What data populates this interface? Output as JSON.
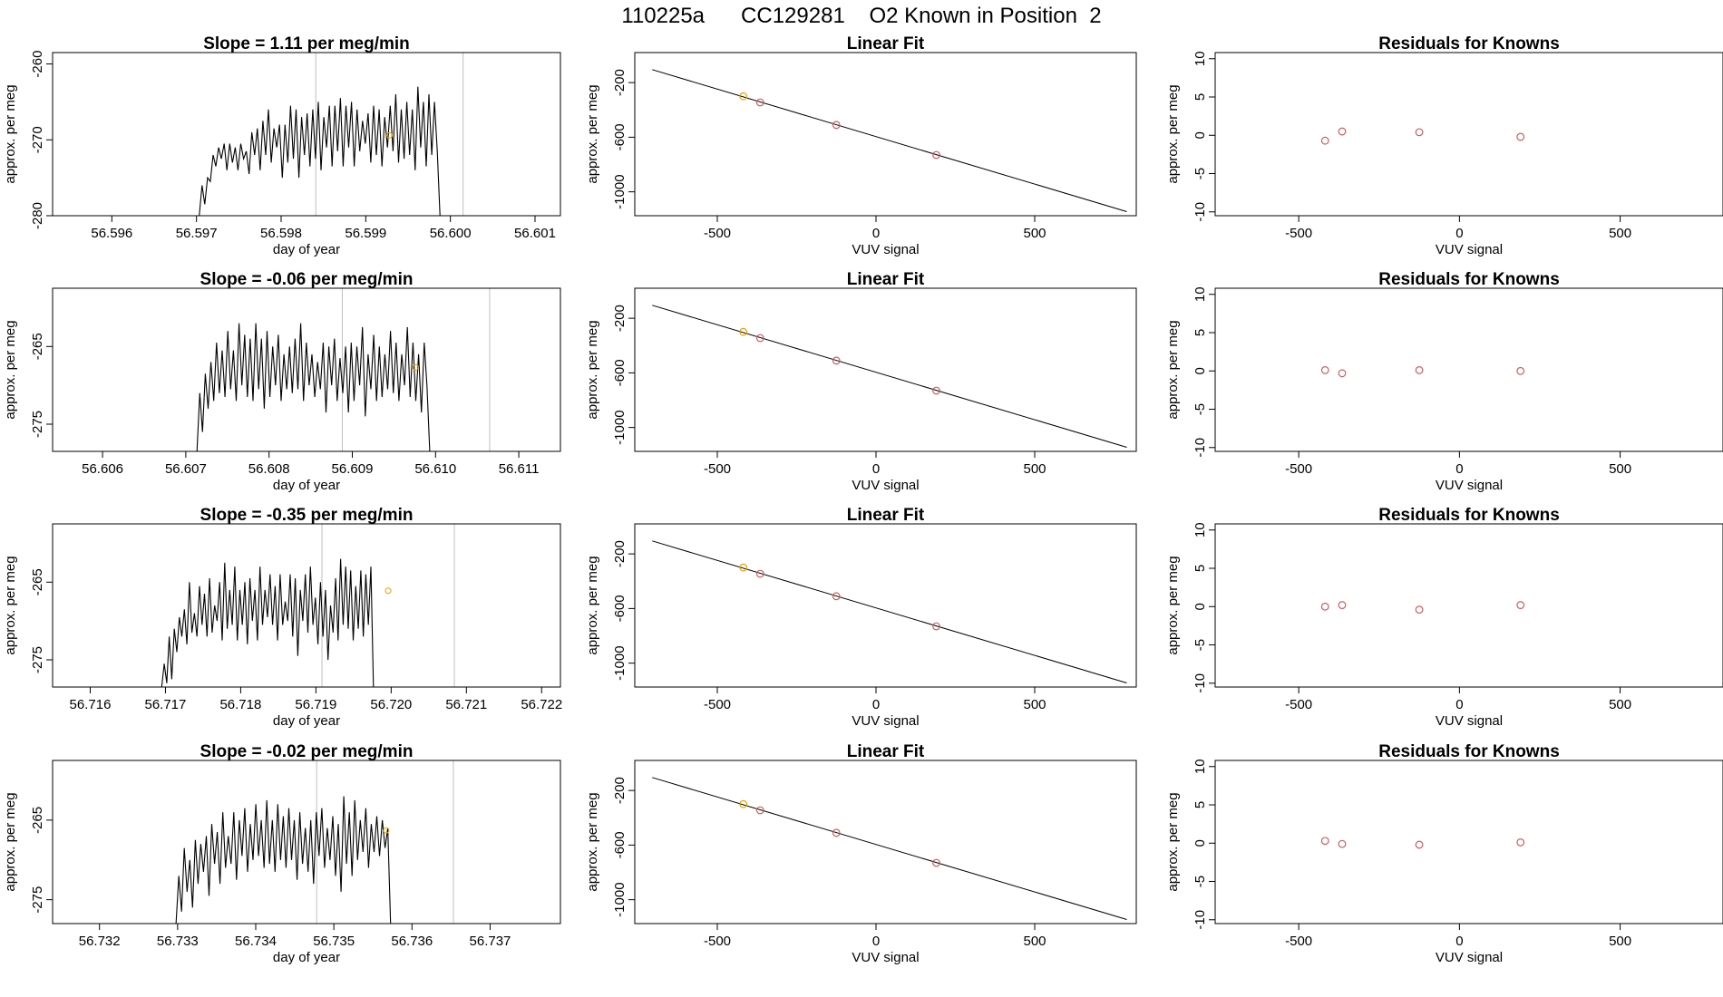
{
  "figure": {
    "title": "110225a      CC129281    O2 Known in Position  2"
  },
  "chart_data": [
    {
      "type": "line",
      "title": "Slope =  1.11  per meg/min",
      "xlabel": "day of year",
      "ylabel": "approx. per meg",
      "xlim": [
        56.5953,
        56.6013
      ],
      "ylim": [
        -280,
        -258.5
      ],
      "xticks": [
        56.596,
        56.597,
        56.598,
        56.599,
        56.6,
        56.601
      ],
      "xtick_labels": [
        "56.596",
        "56.597",
        "56.598",
        "56.599",
        "56.600",
        "56.601"
      ],
      "yticks": [
        -260,
        -270,
        -280
      ],
      "ytick_labels": [
        "-260",
        "-270",
        "-280"
      ],
      "x_start": 56.597,
      "x_step": 3.27e-05,
      "series": [
        {
          "values": [
            -280,
            -280,
            -276,
            -278.5,
            -275,
            -275.5,
            -272,
            -273.5,
            -271,
            -272.5,
            -270.5,
            -274,
            -270.5,
            -273,
            -271,
            -274,
            -270.5,
            -272.5,
            -271.5,
            -274.5,
            -269,
            -272,
            -268.5,
            -274,
            -267.5,
            -272,
            -266,
            -273,
            -268.5,
            -271,
            -268,
            -275,
            -268,
            -273,
            -265.5,
            -272.5,
            -266,
            -275,
            -267,
            -272,
            -266.5,
            -273.5,
            -266,
            -272.5,
            -265,
            -274,
            -267,
            -271,
            -265.5,
            -273.5,
            -265.5,
            -271.5,
            -264.5,
            -273.5,
            -265.5,
            -271,
            -265,
            -273.5,
            -266,
            -271.5,
            -267.5,
            -270.5,
            -266.5,
            -273,
            -265.5,
            -272,
            -266,
            -273.5,
            -267,
            -271,
            -265.5,
            -271.5,
            -264,
            -273,
            -266,
            -272.5,
            -265,
            -272,
            -266,
            -274,
            -263,
            -271,
            -265,
            -273.5,
            -264,
            -272,
            -265,
            -271.5,
            -280
          ]
        }
      ],
      "vlines": [
        56.59841,
        56.60015
      ],
      "marker": {
        "x": 56.59928,
        "y": -269.4
      }
    },
    {
      "type": "scatter",
      "title": "Linear Fit",
      "xlabel": "VUV signal",
      "ylabel": "approx. per meg",
      "xlim": [
        -760,
        820
      ],
      "ylim": [
        -1175,
        20
      ],
      "xticks": [
        -500,
        0,
        500
      ],
      "xtick_labels": [
        "-500",
        "0",
        "500"
      ],
      "yticks": [
        -200,
        -600,
        -1000
      ],
      "ytick_labels": [
        "-200",
        "-600",
        "-1000"
      ],
      "line": {
        "x": [
          -705,
          790
        ],
        "y": [
          -105,
          -1145
        ]
      },
      "points": [
        {
          "x": -418,
          "y": -300,
          "color": "#e69f00"
        },
        {
          "x": -365,
          "y": -345,
          "color": "#cd5c5c"
        },
        {
          "x": -125,
          "y": -510,
          "color": "#cd5c5c"
        },
        {
          "x": 190,
          "y": -730,
          "color": "#cd5c5c"
        }
      ]
    },
    {
      "type": "scatter",
      "title": "Residuals for Knowns",
      "xlabel": "VUV signal",
      "ylabel": "approx. per meg",
      "xlim": [
        -760,
        820
      ],
      "ylim": [
        -10.5,
        10.8
      ],
      "xticks": [
        -500,
        0,
        500
      ],
      "xtick_labels": [
        "-500",
        "0",
        "500"
      ],
      "yticks": [
        10,
        5,
        0,
        -5,
        -10
      ],
      "ytick_labels": [
        "10",
        "5",
        "0",
        "-5",
        "-10"
      ],
      "points": [
        {
          "x": -418,
          "y": -0.7,
          "color": "#cd5c5c"
        },
        {
          "x": -365,
          "y": 0.5,
          "color": "#cd5c5c"
        },
        {
          "x": -125,
          "y": 0.4,
          "color": "#cd5c5c"
        },
        {
          "x": 190,
          "y": -0.2,
          "color": "#cd5c5c"
        }
      ]
    },
    {
      "type": "line",
      "title": "Slope =  -0.06  per meg/min",
      "xlabel": "day of year",
      "ylabel": "approx. per meg",
      "xlim": [
        56.6054,
        56.6115
      ],
      "ylim": [
        -278.5,
        -257.5
      ],
      "xticks": [
        56.606,
        56.607,
        56.608,
        56.609,
        56.61,
        56.611
      ],
      "xtick_labels": [
        "56.606",
        "56.607",
        "56.608",
        "56.609",
        "56.610",
        "56.611"
      ],
      "yticks": [
        -265,
        -275
      ],
      "ytick_labels": [
        "-265",
        "-275"
      ],
      "x_start": 56.6071,
      "x_step": 3.37e-05,
      "series": [
        {
          "values": [
            -278.5,
            -278.5,
            -271,
            -276,
            -268.5,
            -273,
            -267,
            -272,
            -264.5,
            -271,
            -265.5,
            -271.5,
            -263,
            -270.5,
            -265.5,
            -272,
            -262,
            -270,
            -263.5,
            -271.5,
            -264,
            -272,
            -262,
            -270.5,
            -264,
            -273,
            -263,
            -271.5,
            -265,
            -270,
            -263.5,
            -272,
            -266,
            -270.5,
            -265,
            -271,
            -264,
            -270.5,
            -262,
            -272,
            -264.5,
            -270,
            -266,
            -271.5,
            -267,
            -270.5,
            -264.5,
            -273.5,
            -265,
            -270,
            -264,
            -272,
            -266.5,
            -271,
            -265,
            -273.5,
            -264.5,
            -272,
            -265,
            -270,
            -262.5,
            -274,
            -266,
            -270.5,
            -263.5,
            -272,
            -265,
            -271.5,
            -266,
            -270.5,
            -263,
            -271,
            -264.5,
            -272,
            -266,
            -270,
            -262.5,
            -271.5,
            -264.5,
            -272,
            -266,
            -273.5,
            -264.5,
            -270,
            -278.5
          ]
        }
      ],
      "vlines": [
        56.60888,
        56.61065
      ],
      "marker": {
        "x": 56.60976,
        "y": -267.7
      }
    },
    {
      "type": "scatter",
      "title": "Linear Fit",
      "xlabel": "VUV signal",
      "ylabel": "approx. per meg",
      "xlim": [
        -760,
        820
      ],
      "ylim": [
        -1175,
        20
      ],
      "xticks": [
        -500,
        0,
        500
      ],
      "xtick_labels": [
        "-500",
        "0",
        "500"
      ],
      "yticks": [
        -200,
        -600,
        -1000
      ],
      "ytick_labels": [
        "-200",
        "-600",
        "-1000"
      ],
      "line": {
        "x": [
          -705,
          790
        ],
        "y": [
          -105,
          -1145
        ]
      },
      "points": [
        {
          "x": -418,
          "y": -300,
          "color": "#e69f00"
        },
        {
          "x": -365,
          "y": -345,
          "color": "#cd5c5c"
        },
        {
          "x": -125,
          "y": -510,
          "color": "#cd5c5c"
        },
        {
          "x": 190,
          "y": -730,
          "color": "#cd5c5c"
        }
      ]
    },
    {
      "type": "scatter",
      "title": "Residuals for Knowns",
      "xlabel": "VUV signal",
      "ylabel": "approx. per meg",
      "xlim": [
        -760,
        820
      ],
      "ylim": [
        -10.5,
        10.8
      ],
      "xticks": [
        -500,
        0,
        500
      ],
      "xtick_labels": [
        "-500",
        "0",
        "500"
      ],
      "yticks": [
        10,
        5,
        0,
        -5,
        -10
      ],
      "ytick_labels": [
        "10",
        "5",
        "0",
        "-5",
        "-10"
      ],
      "points": [
        {
          "x": -418,
          "y": 0.1,
          "color": "#cd5c5c"
        },
        {
          "x": -365,
          "y": -0.3,
          "color": "#cd5c5c"
        },
        {
          "x": -125,
          "y": 0.1,
          "color": "#cd5c5c"
        },
        {
          "x": 190,
          "y": 0.0,
          "color": "#cd5c5c"
        }
      ]
    },
    {
      "type": "line",
      "title": "Slope =  -0.35  per meg/min",
      "xlabel": "day of year",
      "ylabel": "approx. per meg",
      "xlim": [
        56.7155,
        56.72225
      ],
      "ylim": [
        -278.5,
        -257.5
      ],
      "xticks": [
        56.716,
        56.717,
        56.718,
        56.719,
        56.72,
        56.721,
        56.722
      ],
      "xtick_labels": [
        "56.716",
        "56.717",
        "56.718",
        "56.719",
        "56.720",
        "56.721",
        "56.722"
      ],
      "yticks": [
        -265,
        -275
      ],
      "ytick_labels": [
        "-265",
        "-275"
      ],
      "x_start": 56.71695,
      "x_step": 3.35e-05,
      "series": [
        {
          "values": [
            -278.5,
            -275.5,
            -278,
            -272,
            -277.5,
            -271,
            -274,
            -269.5,
            -272,
            -268.5,
            -273,
            -265,
            -271.5,
            -269,
            -272,
            -265.5,
            -270.5,
            -266.5,
            -272,
            -264.5,
            -271.5,
            -268,
            -270,
            -265,
            -272.5,
            -262.5,
            -271,
            -266,
            -270.5,
            -263,
            -272.5,
            -266,
            -270.5,
            -265,
            -273,
            -264.5,
            -270,
            -266,
            -272.5,
            -263,
            -270.5,
            -266,
            -269.5,
            -264,
            -270.5,
            -265.5,
            -272.5,
            -264,
            -270.5,
            -267.5,
            -270,
            -264,
            -272,
            -264.5,
            -274.5,
            -266,
            -270,
            -264,
            -271.5,
            -263,
            -270.5,
            -267,
            -273,
            -265,
            -272,
            -266,
            -275,
            -268,
            -271.5,
            -264.5,
            -272.5,
            -262,
            -270.5,
            -263,
            -271,
            -263.5,
            -272.5,
            -265.5,
            -271,
            -263.5,
            -272,
            -264,
            -270.5,
            -263,
            -278.5
          ]
        }
      ],
      "vlines": [
        56.71908,
        56.72084
      ],
      "marker": {
        "x": 56.71996,
        "y": -266.1
      }
    },
    {
      "type": "scatter",
      "title": "Linear Fit",
      "xlabel": "VUV signal",
      "ylabel": "approx. per meg",
      "xlim": [
        -760,
        820
      ],
      "ylim": [
        -1175,
        20
      ],
      "xticks": [
        -500,
        0,
        500
      ],
      "xtick_labels": [
        "-500",
        "0",
        "500"
      ],
      "yticks": [
        -200,
        -600,
        -1000
      ],
      "ytick_labels": [
        "-200",
        "-600",
        "-1000"
      ],
      "line": {
        "x": [
          -705,
          790
        ],
        "y": [
          -105,
          -1145
        ]
      },
      "points": [
        {
          "x": -418,
          "y": -300,
          "color": "#e69f00"
        },
        {
          "x": -365,
          "y": -345,
          "color": "#cd5c5c"
        },
        {
          "x": -125,
          "y": -510,
          "color": "#cd5c5c"
        },
        {
          "x": 190,
          "y": -730,
          "color": "#cd5c5c"
        }
      ]
    },
    {
      "type": "scatter",
      "title": "Residuals for Knowns",
      "xlabel": "VUV signal",
      "ylabel": "approx. per meg",
      "xlim": [
        -760,
        820
      ],
      "ylim": [
        -10.5,
        10.8
      ],
      "xticks": [
        -500,
        0,
        500
      ],
      "xtick_labels": [
        "-500",
        "0",
        "500"
      ],
      "yticks": [
        10,
        5,
        0,
        -5,
        -10
      ],
      "ytick_labels": [
        "10",
        "5",
        "0",
        "-5",
        "-10"
      ],
      "points": [
        {
          "x": -418,
          "y": 0.0,
          "color": "#cd5c5c"
        },
        {
          "x": -365,
          "y": 0.2,
          "color": "#cd5c5c"
        },
        {
          "x": -125,
          "y": -0.4,
          "color": "#cd5c5c"
        },
        {
          "x": 190,
          "y": 0.2,
          "color": "#cd5c5c"
        }
      ]
    },
    {
      "type": "line",
      "title": "Slope =  -0.02  per meg/min",
      "xlabel": "day of year",
      "ylabel": "approx. per meg",
      "xlim": [
        56.7314,
        56.7379
      ],
      "ylim": [
        -278,
        -257.5
      ],
      "xticks": [
        56.732,
        56.733,
        56.734,
        56.735,
        56.736,
        56.737
      ],
      "xtick_labels": [
        "56.732",
        "56.733",
        "56.734",
        "56.735",
        "56.736",
        "56.737"
      ],
      "yticks": [
        -265,
        -275
      ],
      "ytick_labels": [
        "-265",
        "-275"
      ],
      "x_start": 56.73298,
      "x_step": 3.52e-05,
      "series": [
        {
          "values": [
            -278,
            -272,
            -276.5,
            -268.5,
            -274,
            -270,
            -276,
            -267.5,
            -273,
            -268,
            -271.5,
            -267,
            -274.5,
            -265.5,
            -270.5,
            -266.5,
            -273,
            -264,
            -271,
            -267,
            -270.5,
            -264,
            -272.5,
            -265,
            -269.5,
            -263.5,
            -271.5,
            -265.5,
            -270,
            -263,
            -269.5,
            -265,
            -271,
            -262.5,
            -270.5,
            -265,
            -271.5,
            -263,
            -270,
            -264.5,
            -271,
            -263.5,
            -270,
            -265,
            -272.5,
            -264,
            -270.5,
            -266,
            -271.5,
            -265,
            -273,
            -264,
            -269.5,
            -263.5,
            -271,
            -266,
            -270,
            -264.5,
            -272,
            -265.5,
            -274,
            -262,
            -270.5,
            -264,
            -272,
            -262.5,
            -270,
            -265,
            -269,
            -263.5,
            -271,
            -265.5,
            -269,
            -264.5,
            -269.5,
            -265,
            -268.5,
            -266,
            -278
          ]
        }
      ],
      "vlines": [
        56.73478,
        56.73653
      ],
      "marker": {
        "x": 56.73567,
        "y": -266.3
      }
    },
    {
      "type": "scatter",
      "title": "Linear Fit",
      "xlabel": "VUV signal",
      "ylabel": "approx. per meg",
      "xlim": [
        -760,
        820
      ],
      "ylim": [
        -1175,
        20
      ],
      "xticks": [
        -500,
        0,
        500
      ],
      "xtick_labels": [
        "-500",
        "0",
        "500"
      ],
      "yticks": [
        -200,
        -600,
        -1000
      ],
      "ytick_labels": [
        "-200",
        "-600",
        "-1000"
      ],
      "line": {
        "x": [
          -705,
          790
        ],
        "y": [
          -105,
          -1145
        ]
      },
      "points": [
        {
          "x": -418,
          "y": -300,
          "color": "#e69f00"
        },
        {
          "x": -365,
          "y": -345,
          "color": "#cd5c5c"
        },
        {
          "x": -125,
          "y": -510,
          "color": "#cd5c5c"
        },
        {
          "x": 190,
          "y": -730,
          "color": "#cd5c5c"
        }
      ]
    },
    {
      "type": "scatter",
      "title": "Residuals for Knowns",
      "xlabel": "VUV signal",
      "ylabel": "approx. per meg",
      "xlim": [
        -760,
        820
      ],
      "ylim": [
        -10.5,
        10.8
      ],
      "xticks": [
        -500,
        0,
        500
      ],
      "xtick_labels": [
        "-500",
        "0",
        "500"
      ],
      "yticks": [
        10,
        5,
        0,
        -5,
        -10
      ],
      "ytick_labels": [
        "10",
        "5",
        "0",
        "-5",
        "-10"
      ],
      "points": [
        {
          "x": -418,
          "y": 0.3,
          "color": "#cd5c5c"
        },
        {
          "x": -365,
          "y": -0.1,
          "color": "#cd5c5c"
        },
        {
          "x": -125,
          "y": -0.2,
          "color": "#cd5c5c"
        },
        {
          "x": 190,
          "y": 0.1,
          "color": "#cd5c5c"
        }
      ]
    }
  ]
}
